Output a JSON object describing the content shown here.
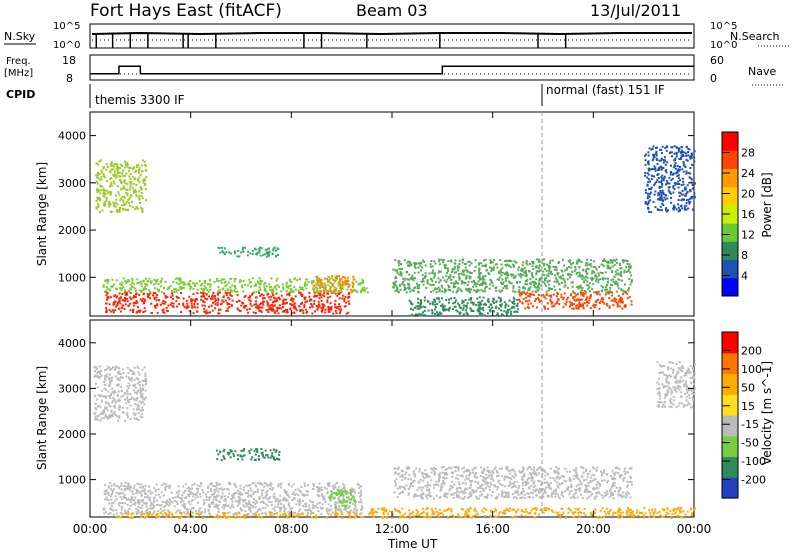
{
  "header": {
    "station": "Fort Hays East (fitACF)",
    "beam": "Beam 03",
    "date": "13/Jul/2011"
  },
  "panels": {
    "nsky": {
      "label": "N.Sky",
      "right_label": "N.Search",
      "left_ticks": [
        "10^5",
        "10^0"
      ],
      "right_ticks": [
        "10^5",
        "10^0"
      ]
    },
    "freq": {
      "label_line1": "Freq.",
      "label_line2": "[MHz]",
      "right_label": "Nave",
      "left_ticks": [
        "18",
        "8"
      ],
      "right_ticks": [
        "60",
        "0"
      ]
    },
    "cpid": {
      "label": "CPID",
      "mode1": "themis 3300 IF",
      "mode2": "normal (fast) 151 IF"
    }
  },
  "colorbars": {
    "power": {
      "label": "Power [dB]",
      "ticks": [
        "28",
        "24",
        "20",
        "16",
        "12",
        "8",
        "4"
      ],
      "colors": [
        "#0000ff",
        "#2050b0",
        "#2e8b57",
        "#66cc33",
        "#ccee00",
        "#ffcc00",
        "#ff9900",
        "#ff4400",
        "#ff0000"
      ]
    },
    "velocity": {
      "label": "Velocity [m s^-1]",
      "ticks": [
        "200",
        "100",
        "50",
        "15",
        "-15",
        "-50",
        "-100",
        "-200"
      ],
      "colors": [
        "#2040c0",
        "#2e8b57",
        "#77cc44",
        "#bbbbbb",
        "#ffdd22",
        "#ffaa00",
        "#ff7700",
        "#ff0000"
      ]
    }
  },
  "chart_data": {
    "type": "heatmap",
    "x_ticks": [
      "00:00",
      "04:00",
      "08:00",
      "12:00",
      "16:00",
      "20:00",
      "00:00"
    ],
    "xlabel": "Time UT",
    "ylabel": "Slant Range [km]",
    "y_ticks": [
      1000,
      2000,
      3000,
      4000
    ],
    "xlim_hours": [
      0,
      24
    ],
    "ylim_km": [
      180,
      4500
    ],
    "mode_change_hour": 18.05,
    "frequency_mhz": [
      {
        "start": 0,
        "end": 1.15,
        "value": 10.5
      },
      {
        "start": 1.15,
        "end": 2.0,
        "value": 13.5
      },
      {
        "start": 2.0,
        "end": 14.0,
        "value": 10.5
      },
      {
        "start": 14.0,
        "end": 24.0,
        "value": 13.5
      }
    ],
    "scatter_regions": {
      "power": [
        {
          "t0": 0.6,
          "t1": 10.3,
          "r0": 250,
          "r1": 700,
          "color": "#ff2200"
        },
        {
          "t0": 0.5,
          "t1": 11.0,
          "r0": 700,
          "r1": 1000,
          "color": "#77cc33"
        },
        {
          "t0": 0.2,
          "t1": 2.2,
          "r0": 2400,
          "r1": 3500,
          "color": "#99cc22"
        },
        {
          "t0": 5.0,
          "t1": 7.5,
          "r0": 1450,
          "r1": 1650,
          "color": "#33aa66"
        },
        {
          "t0": 8.8,
          "t1": 10.5,
          "r0": 700,
          "r1": 1050,
          "color": "#ff8800"
        },
        {
          "t0": 12.0,
          "t1": 21.5,
          "r0": 700,
          "r1": 1400,
          "color": "#55aa55"
        },
        {
          "t0": 17.0,
          "t1": 21.5,
          "r0": 350,
          "r1": 700,
          "color": "#ff4400"
        },
        {
          "t0": 12.5,
          "t1": 17.0,
          "r0": 200,
          "r1": 600,
          "color": "#2e8b57"
        },
        {
          "t0": 22.0,
          "t1": 24.0,
          "r0": 2400,
          "r1": 3800,
          "color": "#2050b0"
        }
      ],
      "velocity": [
        {
          "t0": 0.5,
          "t1": 10.8,
          "r0": 250,
          "r1": 950,
          "color": "#bbbbbb"
        },
        {
          "t0": 0.1,
          "t1": 2.2,
          "r0": 2300,
          "r1": 3500,
          "color": "#bbbbbb"
        },
        {
          "t0": 5.0,
          "t1": 7.5,
          "r0": 1450,
          "r1": 1700,
          "color": "#2e8b57"
        },
        {
          "t0": 1.0,
          "t1": 11.0,
          "r0": 180,
          "r1": 300,
          "color": "#ffaa00"
        },
        {
          "t0": 12.0,
          "t1": 21.5,
          "r0": 600,
          "r1": 1300,
          "color": "#bbbbbb"
        },
        {
          "t0": 9.5,
          "t1": 10.6,
          "r0": 400,
          "r1": 800,
          "color": "#77cc44"
        },
        {
          "t0": 11.0,
          "t1": 24.0,
          "r0": 180,
          "r1": 400,
          "color": "#ffaa00"
        },
        {
          "t0": 22.5,
          "t1": 24.0,
          "r0": 2600,
          "r1": 3600,
          "color": "#bbbbbb"
        }
      ]
    }
  }
}
